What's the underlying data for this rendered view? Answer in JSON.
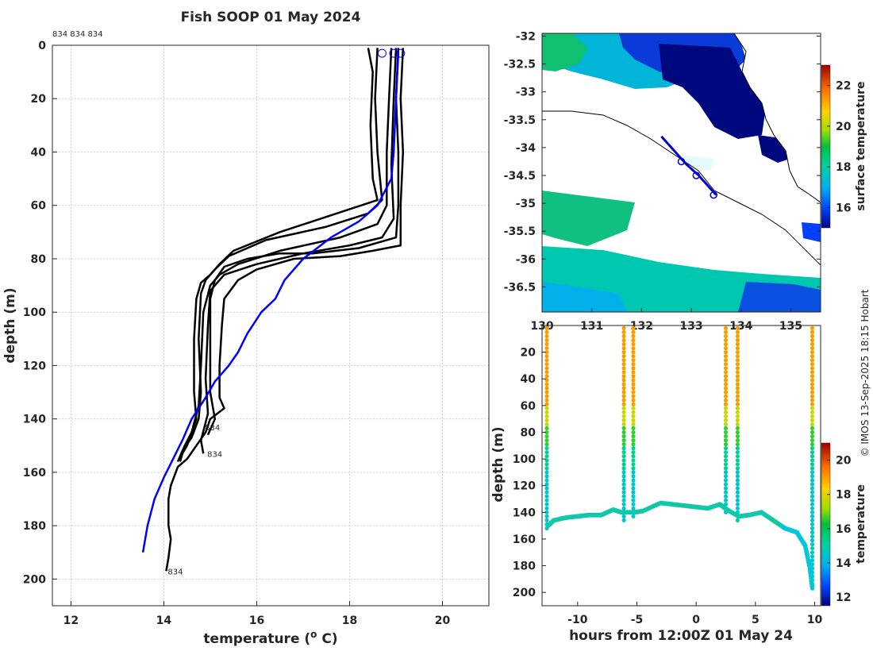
{
  "credit": "© IMOS 13-Sep-2025 18:15 Hobart",
  "chart_data": [
    {
      "type": "line",
      "title": "Fish SOOP 01 May 2024",
      "xlabel": "temperature (",
      "xlabel_sup": "o",
      "xlabel_end": " C)",
      "ylabel": "depth (m)",
      "xlim": [
        11.6,
        21
      ],
      "ylim": [
        210,
        0
      ],
      "xticks": [
        "12",
        "14",
        "16",
        "18",
        "20"
      ],
      "yticks": [
        "0",
        "20",
        "40",
        "60",
        "80",
        "100",
        "120",
        "140",
        "160",
        "180",
        "200"
      ],
      "top_labels": "834 834 834",
      "profile_labels": [
        {
          "text": "834",
          "t": 14.85,
          "d": 143
        },
        {
          "text": "834",
          "t": 14.9,
          "d": 153
        },
        {
          "text": "834",
          "t": 14.05,
          "d": 197
        }
      ],
      "surface_markers": [
        [
          18.7,
          3
        ],
        [
          18.95,
          3
        ],
        [
          19.1,
          3
        ]
      ],
      "series": [
        {
          "name": "profile-1",
          "color": "#000000",
          "points": [
            [
              18.4,
              1
            ],
            [
              18.5,
              10
            ],
            [
              18.45,
              30
            ],
            [
              18.5,
              50
            ],
            [
              18.6,
              58
            ],
            [
              17.9,
              62
            ],
            [
              16.5,
              70
            ],
            [
              15.5,
              77
            ],
            [
              15.2,
              82
            ],
            [
              15.0,
              86
            ],
            [
              14.8,
              89
            ],
            [
              14.7,
              95
            ],
            [
              14.65,
              110
            ],
            [
              14.65,
              130
            ],
            [
              14.7,
              140
            ],
            [
              14.6,
              145
            ],
            [
              14.5,
              150
            ],
            [
              14.4,
              153
            ],
            [
              14.35,
              156
            ]
          ]
        },
        {
          "name": "profile-2",
          "color": "#000000",
          "points": [
            [
              18.6,
              1
            ],
            [
              18.55,
              20
            ],
            [
              18.6,
              40
            ],
            [
              18.7,
              58
            ],
            [
              18.4,
              63
            ],
            [
              17.5,
              68
            ],
            [
              16.2,
              73
            ],
            [
              15.4,
              79
            ],
            [
              15.1,
              84
            ],
            [
              14.9,
              88
            ],
            [
              14.8,
              93
            ],
            [
              14.75,
              110
            ],
            [
              14.8,
              130
            ],
            [
              14.75,
              140
            ],
            [
              14.6,
              147
            ],
            [
              14.4,
              152
            ],
            [
              14.3,
              156
            ]
          ]
        },
        {
          "name": "profile-3",
          "color": "#000000",
          "points": [
            [
              18.9,
              1
            ],
            [
              18.85,
              20
            ],
            [
              18.8,
              40
            ],
            [
              18.8,
              60
            ],
            [
              18.6,
              67
            ],
            [
              17.8,
              72
            ],
            [
              16.5,
              77
            ],
            [
              15.6,
              82
            ],
            [
              15.2,
              86
            ],
            [
              15.0,
              90
            ],
            [
              14.85,
              100
            ],
            [
              14.8,
              120
            ],
            [
              14.75,
              135
            ],
            [
              14.6,
              145
            ],
            [
              14.45,
              150
            ],
            [
              14.35,
              154
            ]
          ]
        },
        {
          "name": "profile-4",
          "color": "#000000",
          "points": [
            [
              19.0,
              1
            ],
            [
              18.95,
              20
            ],
            [
              18.9,
              45
            ],
            [
              18.95,
              65
            ],
            [
              18.7,
              72
            ],
            [
              18.0,
              75
            ],
            [
              17.0,
              78
            ],
            [
              16.0,
              82
            ],
            [
              15.3,
              86
            ],
            [
              15.0,
              92
            ],
            [
              14.95,
              105
            ],
            [
              14.9,
              125
            ],
            [
              14.95,
              138
            ],
            [
              14.8,
              148
            ],
            [
              14.85,
              153
            ]
          ]
        },
        {
          "name": "profile-5",
          "color": "#000000",
          "points": [
            [
              19.05,
              1
            ],
            [
              19.0,
              20
            ],
            [
              19.05,
              40
            ],
            [
              19.05,
              60
            ],
            [
              19.0,
              72
            ],
            [
              18.2,
              76
            ],
            [
              17.2,
              78
            ],
            [
              16.5,
              78
            ],
            [
              15.8,
              80
            ],
            [
              15.3,
              83
            ],
            [
              15.1,
              88
            ],
            [
              15.0,
              95
            ],
            [
              15.0,
              110
            ],
            [
              15.0,
              130
            ],
            [
              15.1,
              140
            ],
            [
              14.95,
              146
            ]
          ]
        },
        {
          "name": "profile-6",
          "color": "#000000",
          "points": [
            [
              19.15,
              1
            ],
            [
              19.1,
              20
            ],
            [
              19.15,
              40
            ],
            [
              19.1,
              60
            ],
            [
              19.1,
              75
            ],
            [
              18.5,
              77
            ],
            [
              17.8,
              79
            ],
            [
              16.8,
              80
            ],
            [
              16.0,
              84
            ],
            [
              15.6,
              88
            ],
            [
              15.3,
              95
            ],
            [
              15.25,
              105
            ],
            [
              15.2,
              120
            ],
            [
              15.2,
              132
            ],
            [
              15.3,
              136
            ],
            [
              15.0,
              140
            ],
            [
              14.9,
              145
            ],
            [
              14.7,
              150
            ],
            [
              14.5,
              155
            ],
            [
              14.3,
              158
            ],
            [
              14.15,
              165
            ],
            [
              14.1,
              170
            ],
            [
              14.1,
              180
            ],
            [
              14.15,
              185
            ],
            [
              14.1,
              192
            ],
            [
              14.05,
              197
            ]
          ]
        },
        {
          "name": "mean-profile",
          "color": "#0000ff",
          "points": [
            [
              19.05,
              3
            ],
            [
              19.0,
              20
            ],
            [
              18.95,
              40
            ],
            [
              18.9,
              50
            ],
            [
              18.6,
              60
            ],
            [
              18.2,
              66
            ],
            [
              17.6,
              72
            ],
            [
              17.0,
              80
            ],
            [
              16.6,
              88
            ],
            [
              16.4,
              95
            ],
            [
              16.1,
              100
            ],
            [
              15.8,
              108
            ],
            [
              15.6,
              115
            ],
            [
              15.4,
              120
            ],
            [
              15.1,
              126
            ],
            [
              14.9,
              132
            ],
            [
              14.6,
              140
            ],
            [
              14.4,
              148
            ],
            [
              14.2,
              155
            ],
            [
              14.0,
              162
            ],
            [
              13.8,
              170
            ],
            [
              13.65,
              180
            ],
            [
              13.55,
              190
            ]
          ]
        }
      ]
    },
    {
      "type": "heatmap",
      "title": "",
      "xlabel": "",
      "ylabel": "",
      "xlim": [
        130,
        135.6
      ],
      "ylim": [
        -36.95,
        -31.95
      ],
      "xticks": [
        "130",
        "131",
        "132",
        "133",
        "134",
        "135"
      ],
      "yticks": [
        "-32",
        "-32.5",
        "-33",
        "-33.5",
        "-34",
        "-34.5",
        "-35",
        "-35.5",
        "-36",
        "-36.5"
      ],
      "colorbar_label": "surface temperature",
      "colorbar_ticks": [
        "16",
        "18",
        "20",
        "22"
      ],
      "colorbar_range": [
        15,
        23
      ],
      "track": [
        [
          132.4,
          -33.8
        ],
        [
          132.9,
          -34.3
        ],
        [
          133.15,
          -34.5
        ],
        [
          133.5,
          -34.85
        ]
      ],
      "track_markers": [
        [
          132.8,
          -34.25
        ],
        [
          133.1,
          -34.5
        ],
        [
          133.45,
          -34.85
        ]
      ]
    },
    {
      "type": "scatter",
      "title": "",
      "xlabel": "hours from 12:00Z 01 May 24",
      "ylabel": "depth (m)",
      "xlim": [
        -13,
        10.5
      ],
      "ylim": [
        210,
        0
      ],
      "xticks": [
        "-10",
        "-5",
        "0",
        "5",
        "10"
      ],
      "yticks": [
        "20",
        "40",
        "60",
        "80",
        "100",
        "120",
        "140",
        "160",
        "180",
        "200"
      ],
      "colorbar_label": "temperature",
      "colorbar_ticks": [
        "12",
        "14",
        "16",
        "18",
        "20"
      ],
      "colorbar_range": [
        11.5,
        21
      ],
      "casts": [
        {
          "hour": -12.6,
          "bottom": 152,
          "mixed_depth": 62
        },
        {
          "hour": -6.1,
          "bottom": 146,
          "mixed_depth": 62
        },
        {
          "hour": -5.3,
          "bottom": 145,
          "mixed_depth": 62
        },
        {
          "hour": 2.5,
          "bottom": 140,
          "mixed_depth": 65
        },
        {
          "hour": 3.5,
          "bottom": 146,
          "mixed_depth": 65
        },
        {
          "hour": 9.8,
          "bottom": 197,
          "mixed_depth": 75
        }
      ],
      "bottom_trace": [
        [
          -12.5,
          150
        ],
        [
          -12,
          146
        ],
        [
          -11,
          144
        ],
        [
          -10,
          143
        ],
        [
          -9,
          142
        ],
        [
          -8,
          142
        ],
        [
          -7,
          138
        ],
        [
          -6.3,
          140
        ],
        [
          -5.2,
          140
        ],
        [
          -4.5,
          139
        ],
        [
          -3,
          133
        ],
        [
          -2,
          134
        ],
        [
          -1,
          135
        ],
        [
          0,
          136
        ],
        [
          1,
          137
        ],
        [
          2,
          134
        ],
        [
          2.6,
          138
        ],
        [
          3.6,
          143
        ],
        [
          4.5,
          142
        ],
        [
          5.5,
          140
        ],
        [
          6.5,
          146
        ],
        [
          7.5,
          152
        ],
        [
          8.5,
          155
        ],
        [
          9.2,
          165
        ],
        [
          9.6,
          182
        ],
        [
          9.8,
          197
        ]
      ]
    }
  ]
}
